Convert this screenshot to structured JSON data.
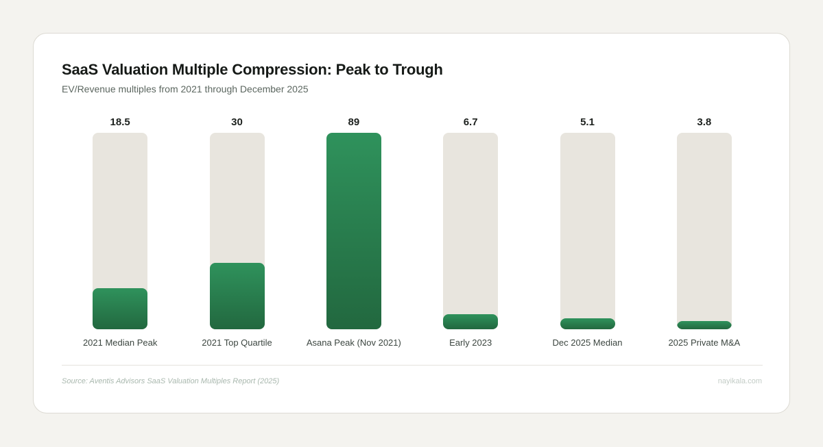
{
  "chart_data": {
    "type": "bar",
    "title": "SaaS Valuation Multiple Compression: Peak to Trough",
    "subtitle": "EV/Revenue multiples from 2021 through December 2025",
    "categories": [
      "2021 Median Peak",
      "2021 Top Quartile",
      "Asana Peak (Nov 2021)",
      "Early 2023",
      "Dec 2025 Median",
      "2025 Private M&A"
    ],
    "values": [
      18.5,
      30,
      89,
      6.7,
      5.1,
      3.8
    ],
    "value_labels": [
      "18.5",
      "30",
      "89",
      "6.7",
      "5.1",
      "3.8"
    ],
    "ylim": [
      0,
      89
    ],
    "grid": false,
    "colors": {
      "bar_top": "#2f925c",
      "bar_bottom": "#22683f",
      "track": "#e8e5de"
    }
  },
  "footer": {
    "source": "Source: Aventis Advisors SaaS Valuation Multiples Report (2025)",
    "brand": "nayikala.com"
  }
}
